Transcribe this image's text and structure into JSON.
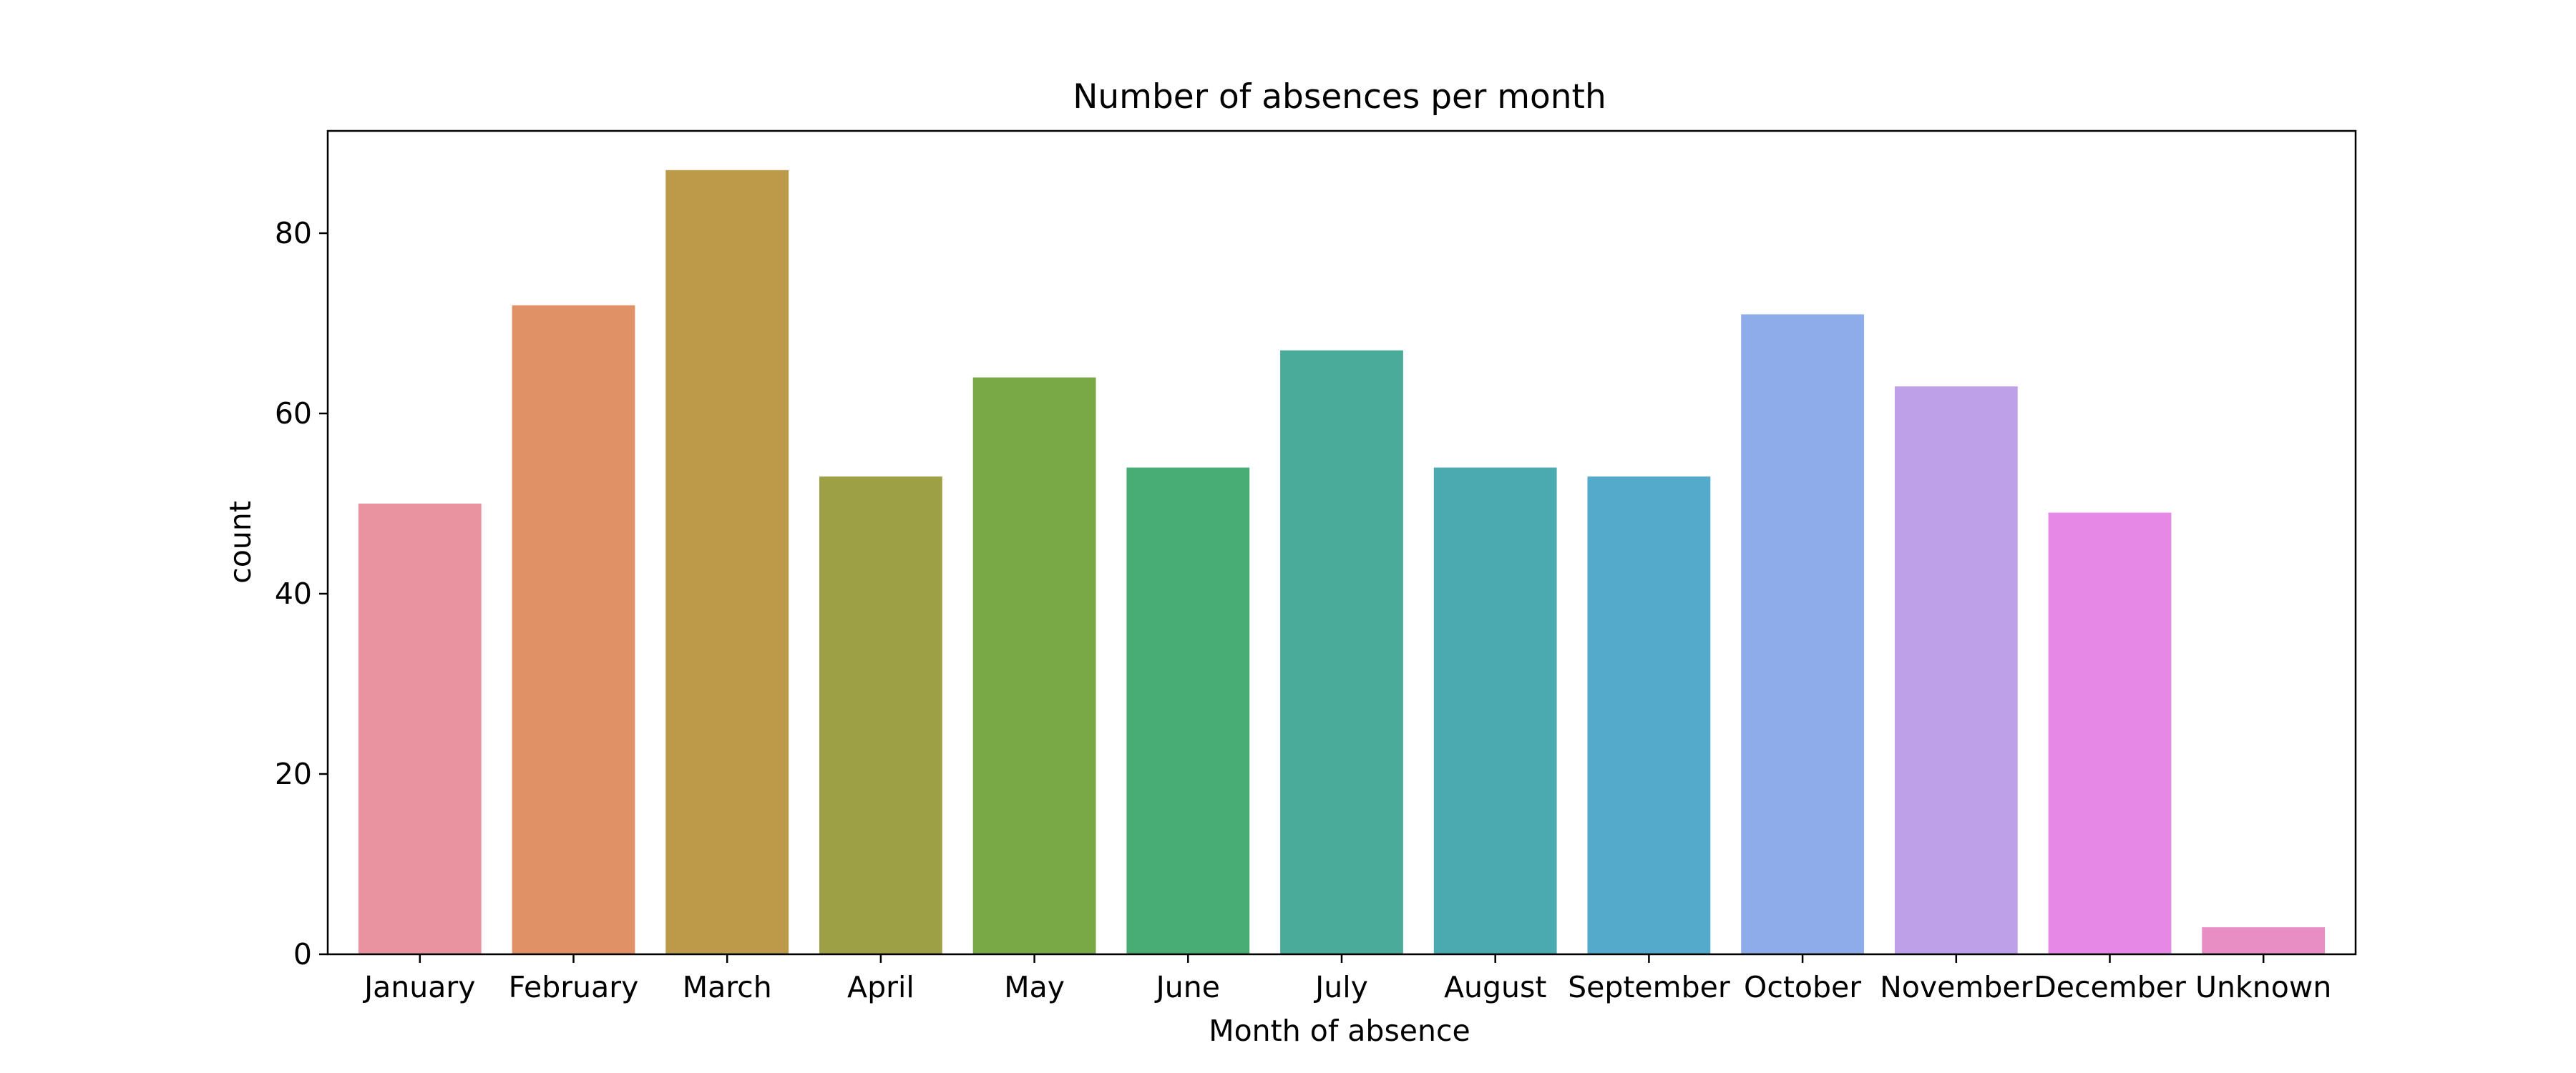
{
  "chart_data": {
    "type": "bar",
    "title": "Number of absences per month",
    "xlabel": "Month of absence",
    "ylabel": "count",
    "categories": [
      "January",
      "February",
      "March",
      "April",
      "May",
      "June",
      "July",
      "August",
      "September",
      "October",
      "November",
      "December",
      "Unknown"
    ],
    "values": [
      50,
      72,
      87,
      53,
      64,
      54,
      67,
      54,
      53,
      71,
      63,
      49,
      3
    ],
    "colors": [
      "#e8939f",
      "#e09165",
      "#bd9a4a",
      "#9ea046",
      "#79a947",
      "#47ad75",
      "#4aab9a",
      "#4aaaaf",
      "#53aacb",
      "#8eacea",
      "#bea0e9",
      "#e588e6",
      "#e98ec5"
    ],
    "yticks": [
      0,
      20,
      40,
      60,
      80
    ],
    "ylim": [
      0,
      91.35
    ],
    "grid": false,
    "legend": "none"
  }
}
